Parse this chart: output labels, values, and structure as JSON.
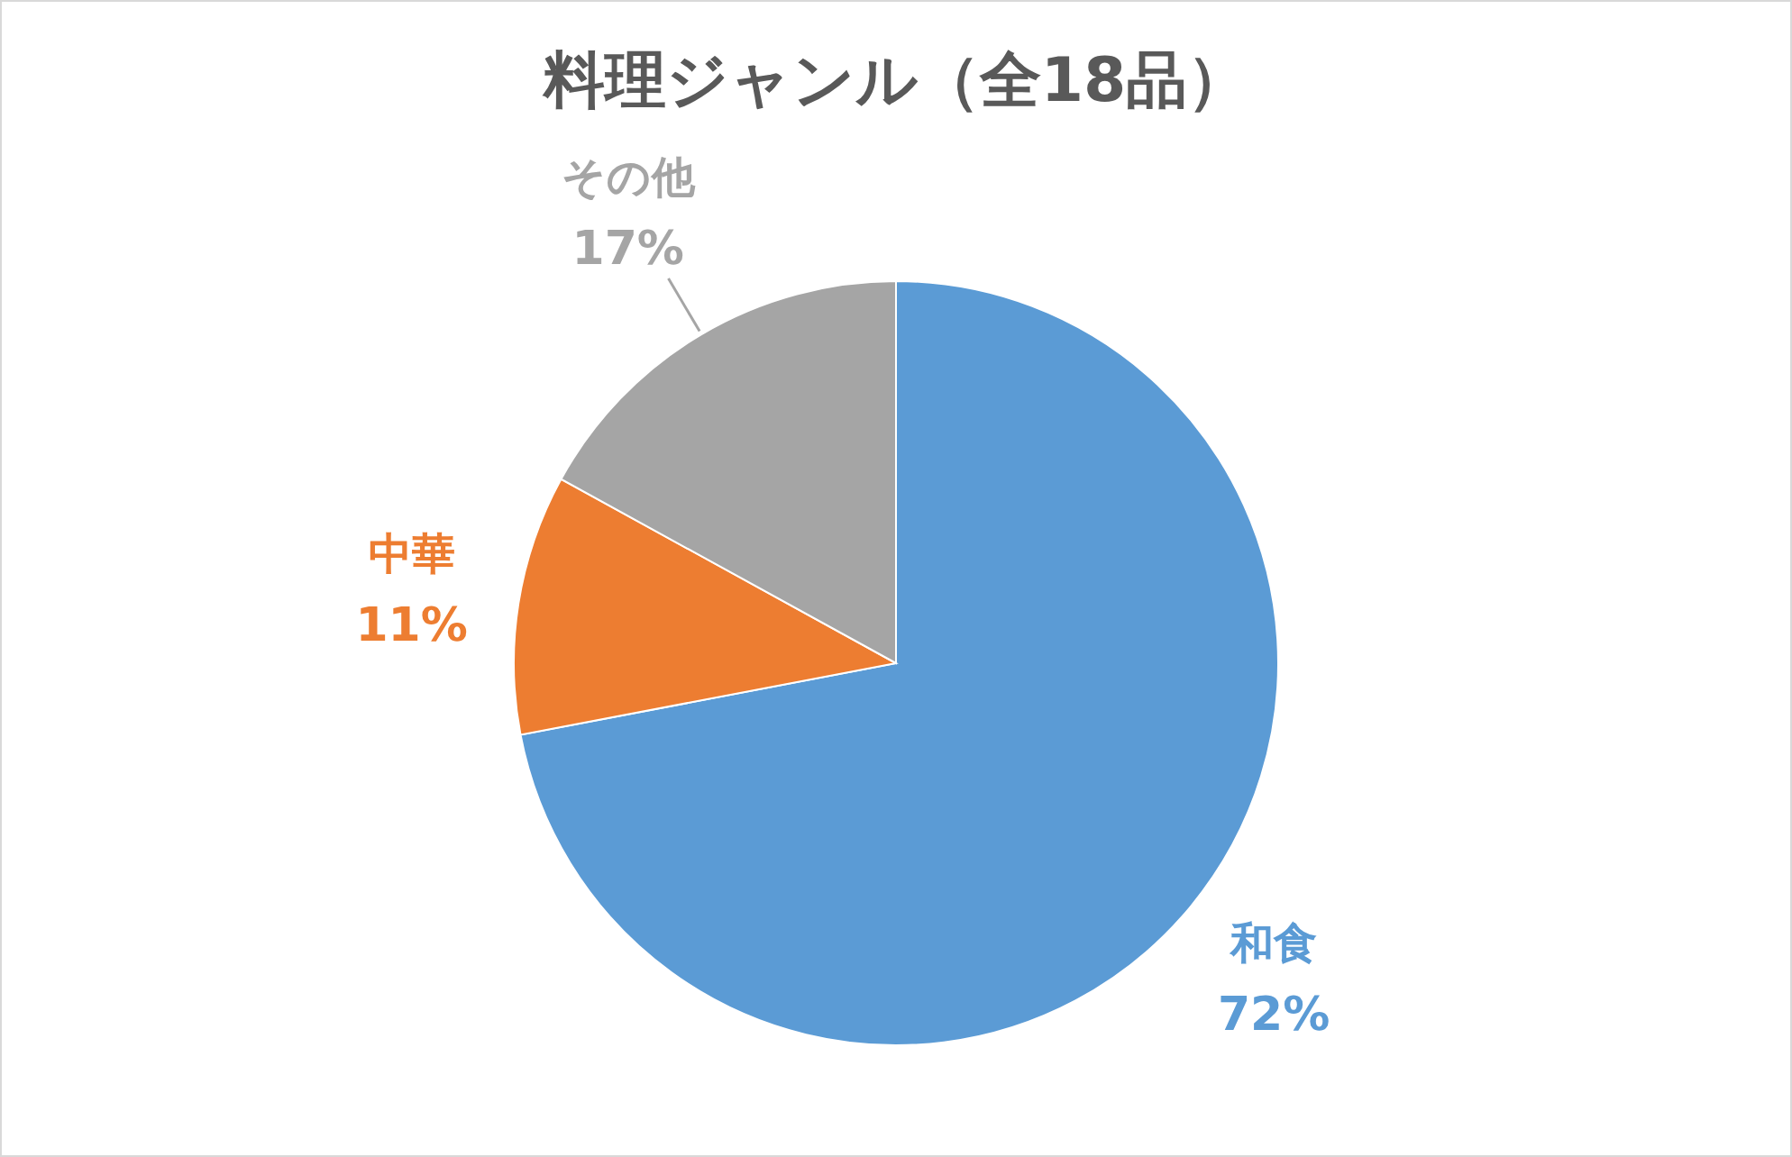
{
  "chart_data": {
    "type": "pie",
    "title": "料理ジャンル（全18品）",
    "categories": [
      "和食",
      "中華",
      "その他"
    ],
    "values": [
      72,
      11,
      17
    ],
    "colors": [
      "#5b9bd5",
      "#ed7d31",
      "#a5a5a5"
    ],
    "value_labels": [
      "72%",
      "11%",
      "17%"
    ]
  }
}
